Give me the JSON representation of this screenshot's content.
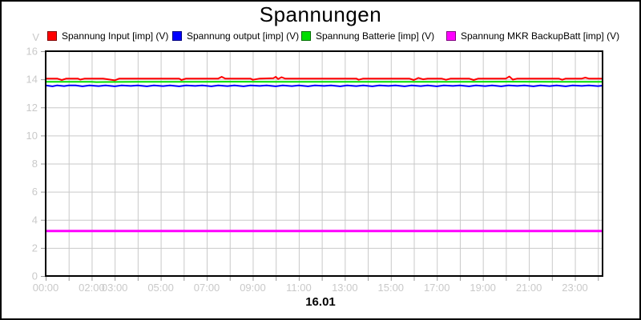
{
  "chart_data": {
    "type": "line",
    "title": "Spannungen",
    "y_unit": "V",
    "x_date_label": "16.01",
    "xlim": [
      0,
      24.2
    ],
    "ylim": [
      0,
      16
    ],
    "grid": true,
    "legend_position": "top",
    "axis_tick_color": "#c9c9c9",
    "grid_color": "#c9c9c9",
    "frame_color": "#000000",
    "y_ticks": [
      0,
      2,
      4,
      6,
      8,
      10,
      12,
      14,
      16
    ],
    "x_grid_interval_hours": 1,
    "x_ticks": [
      {
        "hour": 0,
        "label": "00:00"
      },
      {
        "hour": 2,
        "label": "02:00"
      },
      {
        "hour": 3,
        "label": "03:00"
      },
      {
        "hour": 5,
        "label": "05:00"
      },
      {
        "hour": 7,
        "label": "07:00"
      },
      {
        "hour": 9,
        "label": "09:00"
      },
      {
        "hour": 11,
        "label": "11:00"
      },
      {
        "hour": 13,
        "label": "13:00"
      },
      {
        "hour": 15,
        "label": "15:00"
      },
      {
        "hour": 17,
        "label": "17:00"
      },
      {
        "hour": 19,
        "label": "19:00"
      },
      {
        "hour": 21,
        "label": "21:00"
      },
      {
        "hour": 23,
        "label": "23:00"
      }
    ],
    "series": [
      {
        "name": "Spannung Input [imp] (V)",
        "color": "#ff0000",
        "swatch_border": "#7f0000",
        "line_width": 2,
        "points": [
          [
            0,
            14.05
          ],
          [
            0.5,
            14.05
          ],
          [
            0.7,
            13.95
          ],
          [
            0.9,
            14.05
          ],
          [
            1.4,
            14.05
          ],
          [
            1.5,
            13.98
          ],
          [
            1.7,
            14.05
          ],
          [
            2.5,
            14.05
          ],
          [
            3.0,
            13.93
          ],
          [
            3.2,
            14.05
          ],
          [
            4.5,
            14.05
          ],
          [
            5.8,
            14.05
          ],
          [
            5.9,
            13.95
          ],
          [
            6.1,
            14.05
          ],
          [
            7.5,
            14.05
          ],
          [
            7.65,
            14.18
          ],
          [
            7.8,
            14.05
          ],
          [
            8.9,
            14.05
          ],
          [
            9.0,
            13.97
          ],
          [
            9.3,
            14.05
          ],
          [
            9.9,
            14.08
          ],
          [
            10.0,
            14.18
          ],
          [
            10.1,
            14.02
          ],
          [
            10.25,
            14.15
          ],
          [
            10.4,
            14.05
          ],
          [
            11.5,
            14.05
          ],
          [
            12.5,
            14.05
          ],
          [
            13.5,
            14.05
          ],
          [
            13.6,
            13.97
          ],
          [
            13.8,
            14.05
          ],
          [
            15.8,
            14.05
          ],
          [
            16.0,
            13.95
          ],
          [
            16.2,
            14.1
          ],
          [
            16.4,
            14.0
          ],
          [
            16.6,
            14.05
          ],
          [
            17.2,
            14.05
          ],
          [
            17.4,
            13.97
          ],
          [
            17.6,
            14.05
          ],
          [
            18.4,
            14.05
          ],
          [
            18.6,
            13.95
          ],
          [
            18.8,
            14.05
          ],
          [
            20.0,
            14.05
          ],
          [
            20.15,
            14.2
          ],
          [
            20.3,
            13.98
          ],
          [
            20.5,
            14.05
          ],
          [
            21.5,
            14.05
          ],
          [
            22.3,
            14.05
          ],
          [
            22.45,
            13.97
          ],
          [
            22.6,
            14.05
          ],
          [
            23.3,
            14.05
          ],
          [
            23.45,
            14.12
          ],
          [
            23.6,
            14.05
          ],
          [
            24.2,
            14.05
          ]
        ]
      },
      {
        "name": "Spannung output [imp] (V)",
        "color": "#0000ff",
        "swatch_border": "#00007f",
        "line_width": 2,
        "points": [
          [
            0,
            13.57
          ],
          [
            0.3,
            13.5
          ],
          [
            0.5,
            13.57
          ],
          [
            0.8,
            13.52
          ],
          [
            1.0,
            13.57
          ],
          [
            1.3,
            13.57
          ],
          [
            1.6,
            13.5
          ],
          [
            1.9,
            13.57
          ],
          [
            2.3,
            13.52
          ],
          [
            2.6,
            13.57
          ],
          [
            3.0,
            13.5
          ],
          [
            3.3,
            13.57
          ],
          [
            3.7,
            13.53
          ],
          [
            4.0,
            13.57
          ],
          [
            4.4,
            13.5
          ],
          [
            4.7,
            13.57
          ],
          [
            5.1,
            13.52
          ],
          [
            5.4,
            13.57
          ],
          [
            5.8,
            13.5
          ],
          [
            6.1,
            13.57
          ],
          [
            6.5,
            13.53
          ],
          [
            6.8,
            13.57
          ],
          [
            7.2,
            13.5
          ],
          [
            7.5,
            13.57
          ],
          [
            7.9,
            13.52
          ],
          [
            8.2,
            13.57
          ],
          [
            8.6,
            13.5
          ],
          [
            8.9,
            13.57
          ],
          [
            9.3,
            13.53
          ],
          [
            9.6,
            13.57
          ],
          [
            10.0,
            13.5
          ],
          [
            10.3,
            13.57
          ],
          [
            10.7,
            13.52
          ],
          [
            11.0,
            13.57
          ],
          [
            11.4,
            13.5
          ],
          [
            11.7,
            13.57
          ],
          [
            12.1,
            13.53
          ],
          [
            12.4,
            13.57
          ],
          [
            12.8,
            13.5
          ],
          [
            13.1,
            13.57
          ],
          [
            13.5,
            13.52
          ],
          [
            13.8,
            13.57
          ],
          [
            14.2,
            13.5
          ],
          [
            14.5,
            13.57
          ],
          [
            14.9,
            13.53
          ],
          [
            15.2,
            13.57
          ],
          [
            15.6,
            13.5
          ],
          [
            15.9,
            13.57
          ],
          [
            16.3,
            13.52
          ],
          [
            16.6,
            13.57
          ],
          [
            17.0,
            13.5
          ],
          [
            17.3,
            13.57
          ],
          [
            17.7,
            13.53
          ],
          [
            18.0,
            13.57
          ],
          [
            18.4,
            13.5
          ],
          [
            18.7,
            13.57
          ],
          [
            19.1,
            13.52
          ],
          [
            19.4,
            13.57
          ],
          [
            19.8,
            13.5
          ],
          [
            20.1,
            13.57
          ],
          [
            20.5,
            13.53
          ],
          [
            20.8,
            13.57
          ],
          [
            21.2,
            13.5
          ],
          [
            21.5,
            13.57
          ],
          [
            21.9,
            13.52
          ],
          [
            22.2,
            13.57
          ],
          [
            22.6,
            13.5
          ],
          [
            22.9,
            13.57
          ],
          [
            23.3,
            13.53
          ],
          [
            23.6,
            13.57
          ],
          [
            24.0,
            13.52
          ],
          [
            24.2,
            13.55
          ]
        ]
      },
      {
        "name": "Spannung Batterie [imp] (V)",
        "color": "#00dd00",
        "swatch_border": "#006f00",
        "line_width": 2,
        "points": [
          [
            0,
            13.82
          ],
          [
            2,
            13.82
          ],
          [
            2.2,
            13.8
          ],
          [
            4,
            13.82
          ],
          [
            6,
            13.82
          ],
          [
            8,
            13.83
          ],
          [
            10,
            13.82
          ],
          [
            12,
            13.82
          ],
          [
            14,
            13.82
          ],
          [
            16,
            13.82
          ],
          [
            18,
            13.82
          ],
          [
            20,
            13.83
          ],
          [
            22,
            13.82
          ],
          [
            24.2,
            13.82
          ]
        ]
      },
      {
        "name": "Spannung MKR BackupBatt [imp] (V)",
        "color": "#ff00ff",
        "swatch_border": "#7f007f",
        "line_width": 3,
        "points": [
          [
            0,
            3.2
          ],
          [
            24.2,
            3.2
          ]
        ]
      }
    ]
  }
}
